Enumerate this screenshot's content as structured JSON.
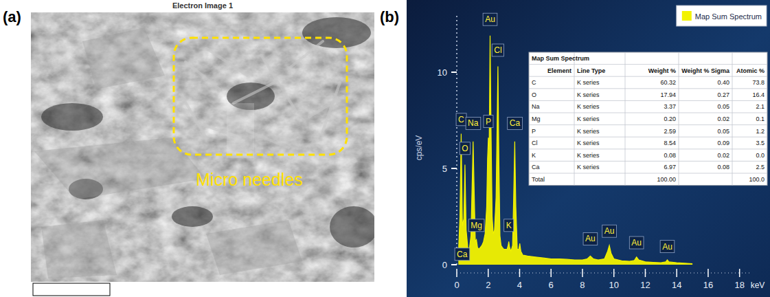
{
  "panel_labels": [
    "(a)",
    "(b)"
  ],
  "image_panel": {
    "title": "Electron Image 1",
    "annotation": "Micro needles"
  },
  "chart_data": {
    "type": "line",
    "x_label": "keV",
    "y_label": "cps/eV",
    "x": [
      0.1,
      0.2,
      0.28,
      0.36,
      0.45,
      0.52,
      0.6,
      0.7,
      0.8,
      0.9,
      1.0,
      1.04,
      1.1,
      1.18,
      1.25,
      1.32,
      1.4,
      1.5,
      1.6,
      1.7,
      1.8,
      1.9,
      1.96,
      2.01,
      2.06,
      2.12,
      2.18,
      2.25,
      2.32,
      2.4,
      2.5,
      2.56,
      2.62,
      2.68,
      2.75,
      2.82,
      2.9,
      3.0,
      3.1,
      3.2,
      3.27,
      3.31,
      3.36,
      3.45,
      3.55,
      3.62,
      3.69,
      3.76,
      3.85,
      3.95,
      4.01,
      4.08,
      4.2,
      4.5,
      5.0,
      5.5,
      6.0,
      6.5,
      7.0,
      7.5,
      8.0,
      8.3,
      8.5,
      8.7,
      9.0,
      9.4,
      9.6,
      9.71,
      9.82,
      10.0,
      10.5,
      11.0,
      11.3,
      11.44,
      11.58,
      12.0,
      12.5,
      13.0,
      13.3,
      13.4,
      13.5,
      14.0,
      14.5,
      15.0
    ],
    "series": [
      {
        "name": "Map Sum Spectrum",
        "color": "#f2f200",
        "values": [
          0.5,
          2.5,
          6.8,
          2.0,
          2.4,
          5.2,
          1.8,
          0.9,
          0.8,
          1.5,
          5.0,
          6.4,
          4.0,
          1.2,
          1.3,
          0.9,
          0.8,
          0.9,
          1.0,
          1.2,
          1.6,
          3.0,
          5.5,
          6.6,
          6.0,
          11.9,
          7.0,
          2.5,
          1.6,
          1.8,
          3.5,
          7.0,
          10.3,
          5.5,
          1.5,
          1.0,
          0.9,
          0.8,
          0.8,
          0.8,
          1.0,
          1.2,
          0.9,
          0.7,
          1.0,
          3.5,
          6.4,
          3.0,
          0.8,
          0.8,
          1.1,
          0.7,
          0.5,
          0.45,
          0.4,
          0.35,
          0.3,
          0.3,
          0.28,
          0.25,
          0.25,
          0.3,
          0.45,
          0.3,
          0.25,
          0.3,
          0.7,
          1.0,
          0.6,
          0.3,
          0.2,
          0.18,
          0.22,
          0.4,
          0.25,
          0.15,
          0.12,
          0.1,
          0.15,
          0.25,
          0.15,
          0.1,
          0.08,
          0.05
        ]
      }
    ],
    "xlim": [
      0,
      18.8
    ],
    "xticks": [
      0,
      2,
      4,
      6,
      8,
      10,
      12,
      14,
      16,
      18
    ],
    "ylim": [
      0,
      13
    ],
    "yticks": [
      0,
      5,
      10
    ],
    "legend": "top-right",
    "annotations": [
      {
        "text": "C",
        "x": 0.28,
        "y": 7.4
      },
      {
        "text": "O",
        "x": 0.52,
        "y": 5.9
      },
      {
        "text": "Na",
        "x": 1.04,
        "y": 7.2
      },
      {
        "text": "Mg",
        "x": 1.25,
        "y": 1.9
      },
      {
        "text": "Ca",
        "x": 0.34,
        "y": 0.4
      },
      {
        "text": "Au",
        "x": 2.12,
        "y": 12.6
      },
      {
        "text": "Cl",
        "x": 2.62,
        "y": 11.0
      },
      {
        "text": "P",
        "x": 2.01,
        "y": 7.3
      },
      {
        "text": "Ca",
        "x": 3.69,
        "y": 7.2
      },
      {
        "text": "K",
        "x": 3.31,
        "y": 1.9
      },
      {
        "text": "Au",
        "x": 8.5,
        "y": 1.2
      },
      {
        "text": "Au",
        "x": 9.71,
        "y": 1.6
      },
      {
        "text": "Au",
        "x": 11.44,
        "y": 1.0
      },
      {
        "text": "Au",
        "x": 13.4,
        "y": 0.8
      }
    ]
  },
  "table": {
    "title": "Map Sum Spectrum",
    "columns": [
      "Element",
      "Line Type",
      "Weight %",
      "Weight % Sigma",
      "Atomic %"
    ],
    "rows": [
      [
        "C",
        "K series",
        "60.32",
        "0.40",
        "73.8"
      ],
      [
        "O",
        "K series",
        "17.94",
        "0.27",
        "16.4"
      ],
      [
        "Na",
        "K series",
        "3.37",
        "0.05",
        "2.1"
      ],
      [
        "Mg",
        "K series",
        "0.20",
        "0.02",
        "0.1"
      ],
      [
        "P",
        "K series",
        "2.59",
        "0.05",
        "1.2"
      ],
      [
        "Cl",
        "K series",
        "8.54",
        "0.09",
        "3.5"
      ],
      [
        "K",
        "K series",
        "0.08",
        "0.02",
        "0.0"
      ],
      [
        "Ca",
        "K series",
        "6.97",
        "0.08",
        "2.5"
      ],
      [
        "Total",
        null,
        "100.00",
        null,
        "100.0"
      ]
    ]
  }
}
